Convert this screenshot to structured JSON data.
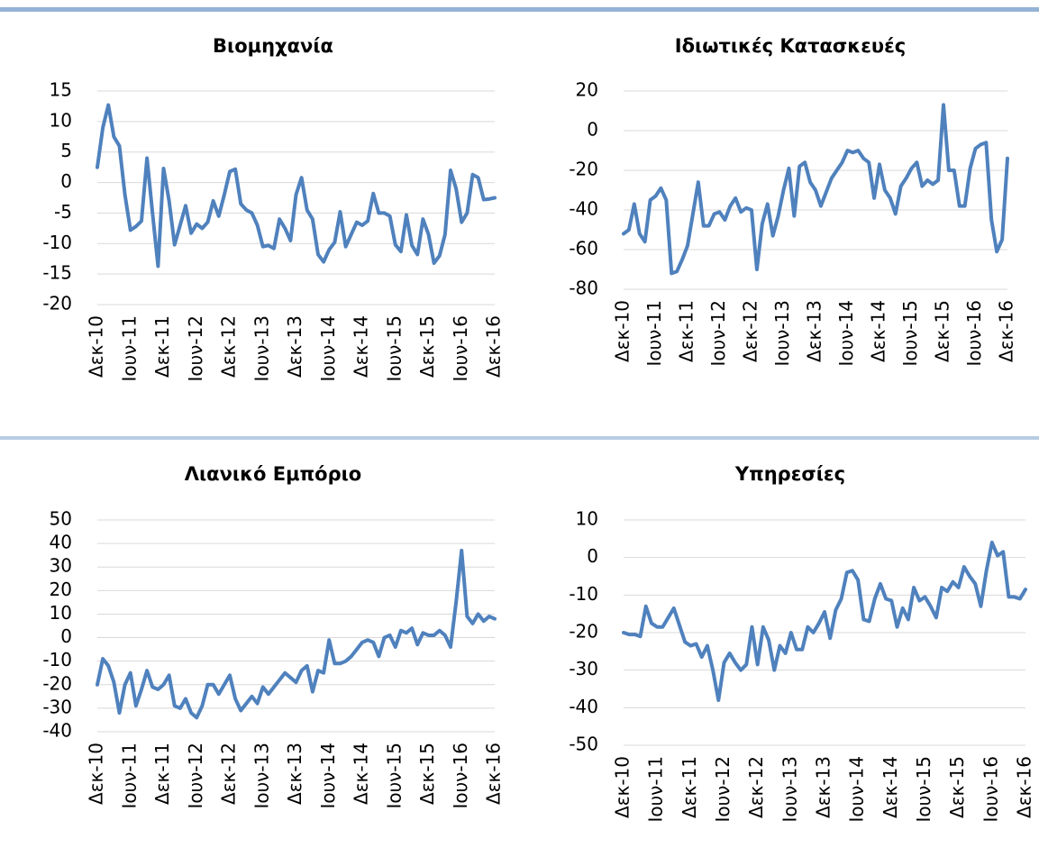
{
  "chart_data": [
    {
      "type": "line",
      "title": "Βιομηχανία",
      "categories": [
        "Δεκ-10",
        null,
        null,
        null,
        null,
        null,
        "Ιουν-11",
        null,
        null,
        null,
        null,
        null,
        "Δεκ-11",
        null,
        null,
        null,
        null,
        null,
        "Ιουν-12",
        null,
        null,
        null,
        null,
        null,
        "Δεκ-12",
        null,
        null,
        null,
        null,
        null,
        "Ιουν-13",
        null,
        null,
        null,
        null,
        null,
        "Δεκ-13",
        null,
        null,
        null,
        null,
        null,
        "Ιουν-14",
        null,
        null,
        null,
        null,
        null,
        "Δεκ-14",
        null,
        null,
        null,
        null,
        null,
        "Ιουν-15",
        null,
        null,
        null,
        null,
        null,
        "Δεκ-15",
        null,
        null,
        null,
        null,
        null,
        "Ιουν-16",
        null,
        null,
        null,
        null,
        null,
        "Δεκ-16"
      ],
      "values": [
        2.5,
        9,
        12.7,
        7.5,
        6,
        -2,
        -7.8,
        -7.2,
        -6.3,
        4,
        -5,
        -13.7,
        2.3,
        -3,
        -10.2,
        -7,
        -3.8,
        -8.3,
        -6.8,
        -7.5,
        -6.5,
        -3,
        -5.5,
        -2,
        1.8,
        2.2,
        -3.5,
        -4.5,
        -5,
        -7,
        -10.5,
        -10.3,
        -10.8,
        -6,
        -7.5,
        -9.5,
        -2,
        0.8,
        -4.5,
        -6,
        -11.8,
        -13,
        -11,
        -9.8,
        -4.8,
        -10.5,
        -8.5,
        -6.5,
        -7,
        -6.3,
        -1.8,
        -5,
        -5,
        -5.5,
        -10.2,
        -11.3,
        -5.3,
        -10.3,
        -11.8,
        -6,
        -8.5,
        -13.2,
        -12,
        -8.5,
        2,
        -1,
        -6.5,
        -5,
        1.3,
        0.8,
        -2.8,
        -2.7,
        -2.5
      ],
      "color": "#4f81bd",
      "ylim": [
        -20,
        15
      ],
      "yticks": [
        -20,
        -15,
        -10,
        -5,
        0,
        5,
        10,
        15
      ],
      "grid": true
    },
    {
      "type": "line",
      "title": "Ιδιωτικές Κατασκευές",
      "categories": [
        "Δεκ-10",
        null,
        null,
        null,
        null,
        null,
        "Ιουν-11",
        null,
        null,
        null,
        null,
        null,
        "Δεκ-11",
        null,
        null,
        null,
        null,
        null,
        "Ιουν-12",
        null,
        null,
        null,
        null,
        null,
        "Δεκ-12",
        null,
        null,
        null,
        null,
        null,
        "Ιουν-13",
        null,
        null,
        null,
        null,
        null,
        "Δεκ-13",
        null,
        null,
        null,
        null,
        null,
        "Ιουν-14",
        null,
        null,
        null,
        null,
        null,
        "Δεκ-14",
        null,
        null,
        null,
        null,
        null,
        "Ιουν-15",
        null,
        null,
        null,
        null,
        null,
        "Δεκ-15",
        null,
        null,
        null,
        null,
        null,
        "Ιουν-16",
        null,
        null,
        null,
        null,
        null,
        "Δεκ-16"
      ],
      "values": [
        -52,
        -50,
        -37,
        -52,
        -56,
        -35,
        -33,
        -29,
        -35,
        -72,
        -71,
        -65,
        -58,
        -42,
        -26,
        -48,
        -48,
        -42,
        -41,
        -45,
        -38,
        -34,
        -41,
        -39,
        -40,
        -70,
        -47,
        -37,
        -53,
        -43,
        -30,
        -19,
        -43,
        -18,
        -16,
        -26,
        -30,
        -38,
        -31,
        -24,
        -20,
        -16,
        -10,
        -11,
        -10,
        -14,
        -16,
        -34,
        -17,
        -30,
        -34,
        -42,
        -28,
        -24,
        -19,
        -16,
        -28,
        -25,
        -27,
        -25,
        13,
        -20,
        -20,
        -38,
        -38,
        -19,
        -9,
        -7,
        -6,
        -45,
        -61,
        -55,
        -14
      ],
      "color": "#4f81bd",
      "ylim": [
        -80,
        20
      ],
      "yticks": [
        -80,
        -60,
        -40,
        -20,
        0,
        20
      ],
      "grid": true
    },
    {
      "type": "line",
      "title": "Λιανικό Εμπόριο",
      "categories": [
        "Δεκ-10",
        null,
        null,
        null,
        null,
        null,
        "Ιουν-11",
        null,
        null,
        null,
        null,
        null,
        "Δεκ-11",
        null,
        null,
        null,
        null,
        null,
        "Ιουν-12",
        null,
        null,
        null,
        null,
        null,
        "Δεκ-12",
        null,
        null,
        null,
        null,
        null,
        "Ιουν-13",
        null,
        null,
        null,
        null,
        null,
        "Δεκ-13",
        null,
        null,
        null,
        null,
        null,
        "Ιουν-14",
        null,
        null,
        null,
        null,
        null,
        "Δεκ-14",
        null,
        null,
        null,
        null,
        null,
        "Ιουν-15",
        null,
        null,
        null,
        null,
        null,
        "Δεκ-15",
        null,
        null,
        null,
        null,
        null,
        "Ιουν-16",
        null,
        null,
        null,
        null,
        null,
        "Δεκ-16"
      ],
      "values": [
        -20,
        -9,
        -12,
        -19,
        -32,
        -20,
        -15,
        -29,
        -22,
        -14,
        -21,
        -22,
        -20,
        -16,
        -29,
        -30,
        -26,
        -32,
        -34,
        -29,
        -20,
        -20,
        -24,
        -20,
        -16,
        -26,
        -31,
        -28,
        -25,
        -28,
        -21,
        -24,
        -21,
        -18,
        -15,
        -17,
        -19,
        -14,
        -12,
        -23,
        -14,
        -15,
        -1,
        -11,
        -11,
        -10,
        -8,
        -5,
        -2,
        -1,
        -2,
        -8,
        0,
        1,
        -4,
        3,
        2,
        4,
        -3,
        2,
        1,
        1,
        3,
        1,
        -4,
        15,
        37,
        9,
        6,
        10,
        7,
        9,
        8
      ],
      "color": "#4f81bd",
      "ylim": [
        -40,
        50
      ],
      "yticks": [
        -40,
        -30,
        -20,
        -10,
        0,
        10,
        20,
        30,
        40,
        50
      ],
      "grid": true
    },
    {
      "type": "line",
      "title": "Υπηρεσίες",
      "categories": [
        "Δεκ-10",
        null,
        null,
        null,
        null,
        null,
        "Ιουν-11",
        null,
        null,
        null,
        null,
        null,
        "Δεκ-11",
        null,
        null,
        null,
        null,
        null,
        "Ιουν-12",
        null,
        null,
        null,
        null,
        null,
        "Δεκ-12",
        null,
        null,
        null,
        null,
        null,
        "Ιουν-13",
        null,
        null,
        null,
        null,
        null,
        "Δεκ-13",
        null,
        null,
        null,
        null,
        null,
        "Ιουν-14",
        null,
        null,
        null,
        null,
        null,
        "Δεκ-14",
        null,
        null,
        null,
        null,
        null,
        "Ιουν-15",
        null,
        null,
        null,
        null,
        null,
        "Δεκ-15",
        null,
        null,
        null,
        null,
        null,
        "Ιουν-16",
        null,
        null,
        null,
        null,
        null,
        "Δεκ-16"
      ],
      "values": [
        -20,
        -20.5,
        -20.5,
        -21,
        -13,
        -17.5,
        -18.5,
        -18.5,
        -16,
        -13.5,
        -18,
        -22.5,
        -23.5,
        -23,
        -26.5,
        -23.5,
        -30,
        -38,
        -28,
        -25.5,
        -28,
        -30,
        -28.5,
        -18.5,
        -28.5,
        -18.5,
        -22,
        -30,
        -23.5,
        -25.5,
        -20,
        -24.5,
        -24.5,
        -18.5,
        -20,
        -17.5,
        -14.5,
        -21.5,
        -14,
        -11,
        -4,
        -3.5,
        -6,
        -16.5,
        -17,
        -11,
        -7,
        -11,
        -11.5,
        -18.5,
        -13.5,
        -16.5,
        -8,
        -11.5,
        -10.5,
        -13,
        -16,
        -8,
        -9,
        -6.5,
        -8,
        -2.5,
        -5,
        -7,
        -13,
        -3.5,
        4,
        0.5,
        1.5,
        -10.5,
        -10.5,
        -11,
        -8.5
      ],
      "color": "#4f81bd",
      "ylim": [
        -50,
        10
      ],
      "yticks": [
        -50,
        -40,
        -30,
        -20,
        -10,
        0,
        10
      ],
      "grid": true
    }
  ]
}
